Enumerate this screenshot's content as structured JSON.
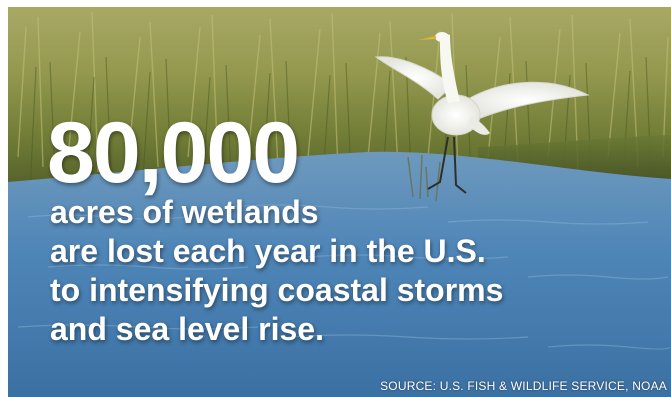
{
  "statistic": {
    "value": "80,000",
    "lines": [
      "acres of wetlands",
      "are lost each year in the U.S.",
      "to intensifying coastal storms",
      "and sea level rise."
    ]
  },
  "source": "SOURCE: U.S. FISH & WILDLIFE SERVICE, NOAA",
  "photo": {
    "subject": "white egret flying over coastal marsh",
    "colors": {
      "grass_light": "#b7b46a",
      "grass_dark": "#5c6a2e",
      "water": "#4f86b8",
      "bird": "#f4f4ef"
    }
  }
}
